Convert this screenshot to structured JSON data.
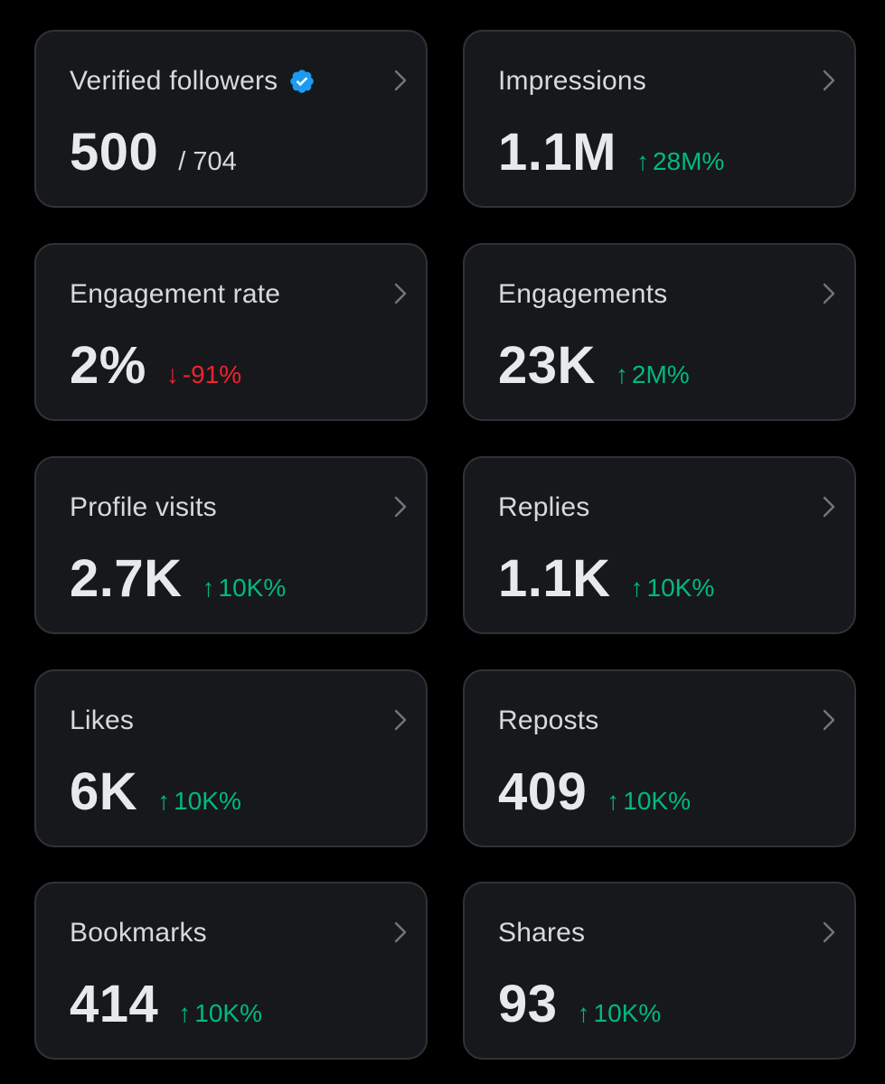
{
  "cards": [
    {
      "label": "Verified followers",
      "value": "500",
      "total": "/ 704"
    },
    {
      "label": "Impressions",
      "value": "1.1M",
      "change": "28M%",
      "arrow": "↑"
    },
    {
      "label": "Engagement rate",
      "value": "2%",
      "change": "-91%",
      "arrow": "↓"
    },
    {
      "label": "Engagements",
      "value": "23K",
      "change": "2M%",
      "arrow": "↑"
    },
    {
      "label": "Profile visits",
      "value": "2.7K",
      "change": "10K%",
      "arrow": "↑"
    },
    {
      "label": "Replies",
      "value": "1.1K",
      "change": "10K%",
      "arrow": "↑"
    },
    {
      "label": "Likes",
      "value": "6K",
      "change": "10K%",
      "arrow": "↑"
    },
    {
      "label": "Reposts",
      "value": "409",
      "change": "10K%",
      "arrow": "↑"
    },
    {
      "label": "Bookmarks",
      "value": "414",
      "change": "10K%",
      "arrow": "↑"
    },
    {
      "label": "Shares",
      "value": "93",
      "change": "10K%",
      "arrow": "↑"
    }
  ],
  "colors": {
    "background": "#000000",
    "card": "#16181c",
    "border": "#2f3336",
    "positive": "#00ba7c",
    "negative": "#f4212e",
    "verified": "#1d9bf0"
  }
}
